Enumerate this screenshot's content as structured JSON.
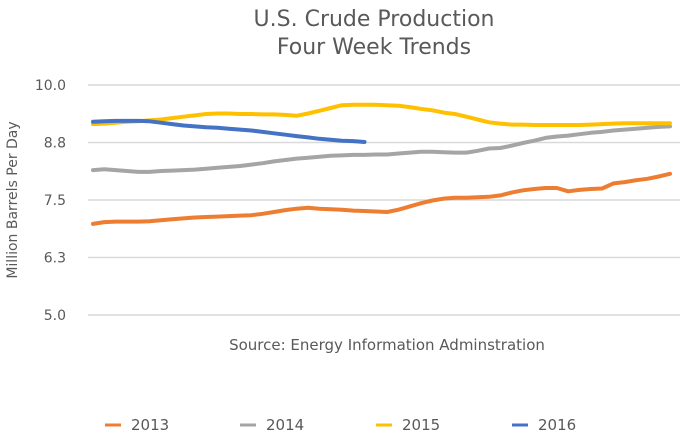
{
  "chart_data": {
    "type": "line",
    "title": [
      "U.S. Crude Production",
      "Four Week Trends"
    ],
    "xlabel": "",
    "ylabel": "Million Barrels Per Day",
    "annotation": "Source: Energy Information Adminstration",
    "ylim": [
      5.0,
      10.0
    ],
    "yticks": [
      5.0,
      6.25,
      7.5,
      8.75,
      10.0
    ],
    "ytick_labels": [
      "5.0",
      "6.3",
      "7.5",
      "8.8",
      "10.0"
    ],
    "grid": true,
    "legend_position": "bottom",
    "x_points": 52,
    "x": [
      1,
      2,
      3,
      4,
      5,
      6,
      7,
      8,
      9,
      10,
      11,
      12,
      13,
      14,
      15,
      16,
      17,
      18,
      19,
      20,
      21,
      22,
      23,
      24,
      25,
      26,
      27,
      28,
      29,
      30,
      31,
      32,
      33,
      34,
      35,
      36,
      37,
      38,
      39,
      40,
      41,
      42,
      43,
      44,
      45,
      46,
      47,
      48,
      49,
      50,
      51,
      52
    ],
    "series": [
      {
        "name": "2013",
        "color": "#ED7D31",
        "values": [
          6.98,
          7.02,
          7.03,
          7.03,
          7.03,
          7.04,
          7.06,
          7.08,
          7.1,
          7.12,
          7.13,
          7.14,
          7.15,
          7.16,
          7.17,
          7.2,
          7.24,
          7.28,
          7.31,
          7.33,
          7.31,
          7.3,
          7.29,
          7.27,
          7.26,
          7.25,
          7.24,
          7.29,
          7.36,
          7.43,
          7.49,
          7.53,
          7.55,
          7.55,
          7.56,
          7.57,
          7.6,
          7.66,
          7.71,
          7.74,
          7.76,
          7.76,
          7.69,
          7.72,
          7.74,
          7.75,
          7.86,
          7.89,
          7.93,
          7.96,
          8.01,
          8.07
        ]
      },
      {
        "name": "2014",
        "color": "#A5A5A5",
        "values": [
          8.15,
          8.17,
          8.15,
          8.13,
          8.11,
          8.11,
          8.13,
          8.14,
          8.15,
          8.16,
          8.18,
          8.2,
          8.22,
          8.24,
          8.27,
          8.3,
          8.34,
          8.37,
          8.4,
          8.42,
          8.44,
          8.46,
          8.47,
          8.48,
          8.48,
          8.49,
          8.49,
          8.51,
          8.53,
          8.55,
          8.55,
          8.54,
          8.53,
          8.53,
          8.57,
          8.62,
          8.63,
          8.68,
          8.74,
          8.79,
          8.85,
          8.88,
          8.9,
          8.93,
          8.96,
          8.98,
          9.01,
          9.03,
          9.05,
          9.07,
          9.09,
          9.1
        ]
      },
      {
        "name": "2015",
        "color": "#FFC000",
        "values": [
          9.15,
          9.16,
          9.18,
          9.2,
          9.21,
          9.23,
          9.25,
          9.28,
          9.31,
          9.34,
          9.37,
          9.38,
          9.38,
          9.37,
          9.37,
          9.36,
          9.36,
          9.35,
          9.33,
          9.38,
          9.44,
          9.5,
          9.56,
          9.57,
          9.57,
          9.57,
          9.56,
          9.55,
          9.52,
          9.48,
          9.45,
          9.4,
          9.37,
          9.31,
          9.25,
          9.19,
          9.16,
          9.14,
          9.14,
          9.13,
          9.13,
          9.13,
          9.13,
          9.13,
          9.14,
          9.15,
          9.16,
          9.17,
          9.17,
          9.17,
          9.17,
          9.17
        ]
      },
      {
        "name": "2016",
        "color": "#4472C4",
        "values": [
          9.2,
          9.21,
          9.22,
          9.22,
          9.22,
          9.21,
          9.18,
          9.15,
          9.12,
          9.1,
          9.08,
          9.07,
          9.05,
          9.03,
          9.01,
          8.98,
          8.95,
          8.92,
          8.89,
          8.86,
          8.83,
          8.81,
          8.79,
          8.78,
          8.76
        ]
      }
    ]
  }
}
